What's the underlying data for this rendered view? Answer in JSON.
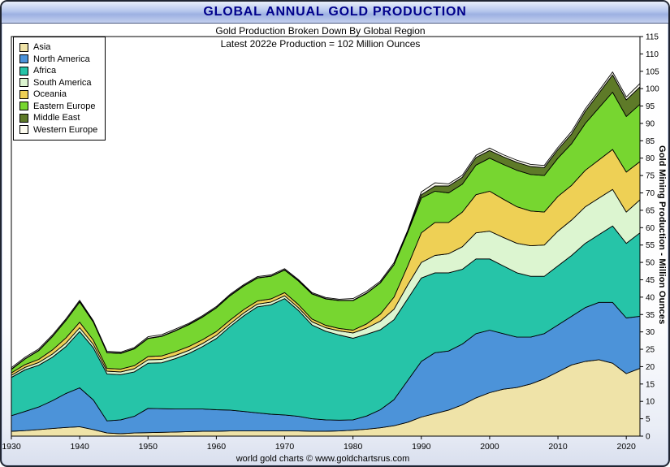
{
  "window": {
    "title": "GLOBAL ANNUAL GOLD PRODUCTION"
  },
  "footer": {
    "caption": "world gold charts © www.goldchartsrus.com"
  },
  "chart_data": {
    "type": "area",
    "stacked": true,
    "title": "Gold Production Broken Down By Global Region",
    "subtitle": "Latest 2022e Production = 102 Million Ounces",
    "latest_year": "2022e",
    "latest_total_moz": 102,
    "xlabel": "",
    "ylabel": "Gold Mining Production - Million Ounces",
    "ylim": [
      0,
      115
    ],
    "grid": false,
    "legend_position": "top-left",
    "x_ticks": [
      1930,
      1940,
      1950,
      1960,
      1970,
      1980,
      1990,
      2000,
      2010,
      2020
    ],
    "y_ticks": [
      0,
      5,
      10,
      15,
      20,
      25,
      30,
      35,
      40,
      45,
      50,
      55,
      60,
      65,
      70,
      75,
      80,
      85,
      90,
      95,
      100,
      105,
      110,
      115
    ],
    "years": [
      1930,
      1932,
      1934,
      1936,
      1938,
      1940,
      1942,
      1944,
      1946,
      1948,
      1950,
      1952,
      1954,
      1956,
      1958,
      1960,
      1962,
      1964,
      1966,
      1968,
      1970,
      1972,
      1974,
      1976,
      1978,
      1980,
      1982,
      1984,
      1986,
      1988,
      1990,
      1992,
      1994,
      1996,
      1998,
      2000,
      2002,
      2004,
      2006,
      2008,
      2010,
      2012,
      2014,
      2016,
      2018,
      2020,
      2022
    ],
    "units": "Million Ounces",
    "series": [
      {
        "name": "Asia",
        "color": "#efe3a8",
        "values": [
          1.4,
          1.6,
          1.9,
          2.2,
          2.5,
          2.7,
          1.9,
          0.9,
          0.7,
          0.9,
          1.0,
          1.1,
          1.2,
          1.3,
          1.4,
          1.4,
          1.5,
          1.5,
          1.5,
          1.5,
          1.5,
          1.5,
          1.4,
          1.4,
          1.5,
          1.7,
          2.0,
          2.4,
          3.0,
          4.0,
          5.5,
          6.5,
          7.5,
          9.0,
          11.0,
          12.5,
          13.5,
          14.0,
          15.0,
          16.5,
          18.5,
          20.5,
          21.5,
          22.0,
          21.0,
          18.0,
          19.5
        ]
      },
      {
        "name": "North America",
        "color": "#4c93d9",
        "values": [
          4.5,
          5.5,
          6.5,
          8.0,
          9.8,
          11.2,
          8.5,
          3.5,
          4.0,
          4.8,
          7.0,
          6.8,
          6.6,
          6.5,
          6.4,
          6.2,
          6.0,
          5.6,
          5.2,
          4.8,
          4.6,
          4.2,
          3.6,
          3.3,
          3.1,
          3.0,
          3.8,
          5.2,
          7.5,
          12.0,
          16.0,
          17.5,
          17.0,
          17.5,
          18.5,
          18.0,
          16.0,
          14.5,
          13.5,
          13.0,
          13.5,
          14.0,
          15.5,
          16.5,
          17.5,
          16.0,
          15.0
        ]
      },
      {
        "name": "Africa",
        "color": "#26c4a8",
        "values": [
          11.0,
          12.0,
          12.0,
          12.5,
          13.5,
          16.2,
          15.0,
          13.5,
          13.0,
          12.8,
          13.0,
          13.2,
          14.5,
          16.0,
          18.0,
          20.5,
          24.0,
          27.5,
          30.5,
          31.5,
          33.5,
          30.5,
          27.0,
          25.5,
          24.5,
          23.5,
          23.5,
          23.0,
          23.0,
          23.5,
          24.0,
          23.0,
          22.5,
          21.5,
          21.5,
          20.5,
          19.5,
          18.5,
          17.5,
          16.5,
          17.0,
          17.5,
          18.5,
          19.5,
          22.0,
          21.5,
          24.0
        ]
      },
      {
        "name": "South America",
        "color": "#dcf5d0",
        "values": [
          0.6,
          0.7,
          0.8,
          0.9,
          1.0,
          1.1,
          1.0,
          0.8,
          0.8,
          0.9,
          1.0,
          1.0,
          0.9,
          0.9,
          0.9,
          0.9,
          0.8,
          0.8,
          0.8,
          0.8,
          0.8,
          0.8,
          0.9,
          1.0,
          1.2,
          1.5,
          1.8,
          2.5,
          3.0,
          4.0,
          4.5,
          5.0,
          5.5,
          6.5,
          7.5,
          8.0,
          8.2,
          8.5,
          8.8,
          9.0,
          10.0,
          10.2,
          10.5,
          10.5,
          10.5,
          9.0,
          9.5
        ]
      },
      {
        "name": "Oceania",
        "color": "#eed055",
        "values": [
          0.7,
          0.8,
          0.9,
          1.2,
          1.5,
          1.6,
          1.2,
          0.8,
          0.8,
          0.9,
          0.9,
          1.0,
          1.1,
          1.1,
          1.1,
          1.1,
          1.1,
          1.0,
          0.9,
          0.9,
          0.9,
          0.9,
          0.8,
          0.7,
          0.7,
          0.8,
          1.2,
          2.0,
          3.5,
          5.5,
          8.5,
          9.5,
          9.0,
          10.0,
          11.0,
          11.5,
          11.0,
          10.5,
          10.0,
          9.5,
          10.0,
          10.0,
          10.5,
          11.0,
          11.5,
          11.5,
          11.0
        ]
      },
      {
        "name": "Eastern Europe",
        "color": "#77d630",
        "values": [
          1.0,
          1.6,
          2.5,
          3.8,
          5.0,
          5.8,
          5.2,
          4.5,
          4.5,
          4.8,
          5.2,
          5.6,
          6.0,
          6.3,
          6.5,
          6.8,
          7.0,
          6.8,
          6.6,
          6.5,
          6.5,
          6.8,
          7.2,
          7.6,
          8.0,
          8.5,
          8.8,
          9.0,
          9.3,
          9.6,
          10.0,
          9.0,
          8.5,
          8.0,
          8.5,
          9.5,
          10.0,
          10.5,
          10.5,
          10.5,
          11.0,
          12.0,
          13.5,
          15.0,
          16.5,
          16.0,
          16.5
        ]
      },
      {
        "name": "Middle East",
        "color": "#5e7a28",
        "values": [
          0.1,
          0.1,
          0.1,
          0.1,
          0.1,
          0.1,
          0.1,
          0.1,
          0.1,
          0.1,
          0.1,
          0.1,
          0.1,
          0.1,
          0.1,
          0.1,
          0.1,
          0.1,
          0.1,
          0.1,
          0.1,
          0.1,
          0.1,
          0.1,
          0.1,
          0.1,
          0.1,
          0.1,
          0.1,
          0.1,
          1.0,
          1.5,
          2.0,
          2.0,
          2.2,
          2.2,
          2.2,
          2.3,
          2.3,
          2.3,
          2.5,
          2.8,
          3.5,
          4.2,
          5.0,
          4.8,
          5.0
        ]
      },
      {
        "name": "Western Europe",
        "color": "#fdfcf0",
        "values": [
          0.4,
          0.4,
          0.4,
          0.4,
          0.4,
          0.4,
          0.3,
          0.3,
          0.3,
          0.3,
          0.4,
          0.4,
          0.4,
          0.3,
          0.3,
          0.3,
          0.3,
          0.3,
          0.3,
          0.3,
          0.3,
          0.3,
          0.3,
          0.3,
          0.3,
          0.5,
          0.5,
          0.4,
          0.5,
          0.5,
          0.8,
          0.9,
          0.6,
          0.6,
          0.6,
          0.7,
          0.6,
          0.6,
          0.6,
          0.6,
          0.6,
          0.7,
          0.7,
          0.7,
          0.8,
          0.8,
          1.0
        ]
      }
    ]
  }
}
